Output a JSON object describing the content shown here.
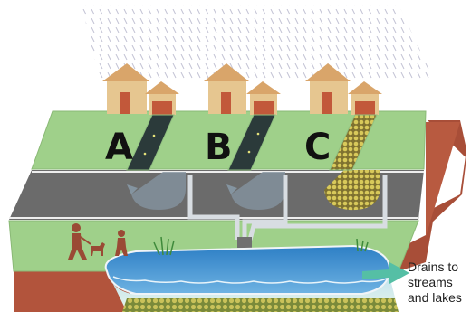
{
  "zones": [
    {
      "label": "A",
      "driveway": "impervious"
    },
    {
      "label": "B",
      "driveway": "impervious"
    },
    {
      "label": "C",
      "driveway": "permeable-pavers"
    }
  ],
  "drain_caption": {
    "line1": "Drains to",
    "line2": "streams",
    "line3": "and lakes"
  },
  "colors": {
    "rain": "#c8c8d6",
    "lawn": "#9fd08a",
    "road": "#6b6b6b",
    "soil": "#b5573f",
    "house_wall": "#e6c690",
    "house_roof": "#d9a56a",
    "door": "#c2583a",
    "driveway": "#2b3a3a",
    "pavers": "#c8b84a",
    "pond": "#3d8fd0",
    "arrow": "#55bfa5"
  },
  "icons": [
    "rain-icon",
    "house-icon",
    "walker-icon",
    "dog-icon",
    "child-icon",
    "grass-icon",
    "drain-arrow-icon",
    "outfall-pipe-icon"
  ]
}
